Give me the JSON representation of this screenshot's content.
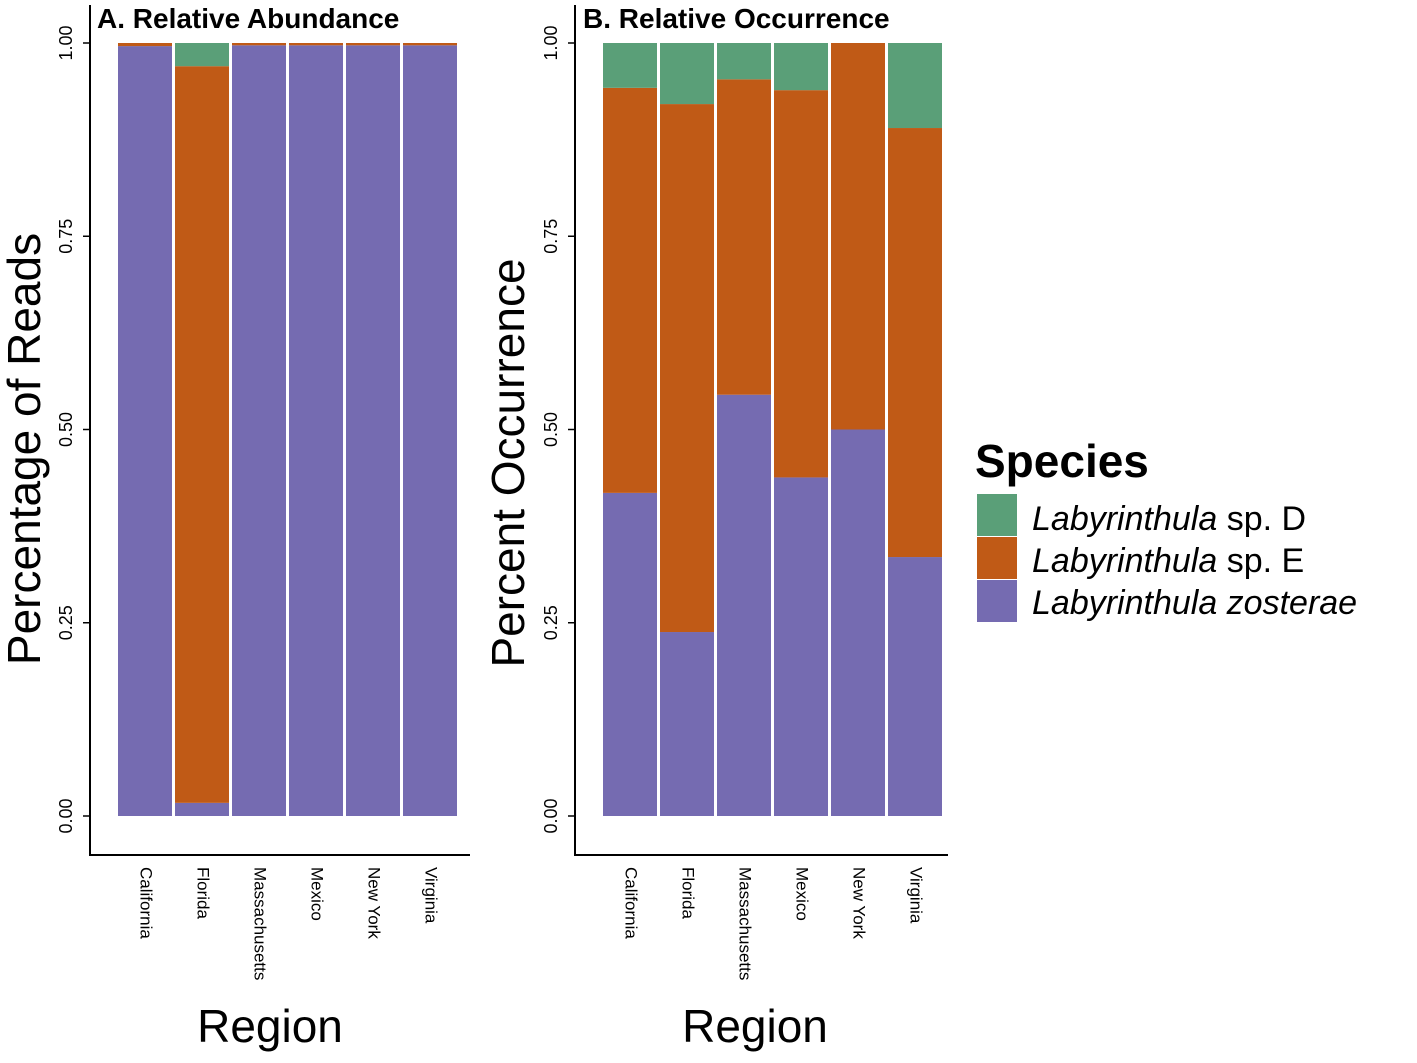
{
  "colors": {
    "sp_d": "#5a9f78",
    "sp_e": "#c05a16",
    "zosterae": "#756bb1",
    "axis": "#000000"
  },
  "legend": {
    "title": "Species",
    "items": [
      {
        "italic": "Labyrinthula",
        "rest": " sp. D",
        "color_key": "sp_d"
      },
      {
        "italic": "Labyrinthula",
        "rest": " sp. E",
        "color_key": "sp_e"
      },
      {
        "italic": "Labyrinthula zosterae",
        "rest": "",
        "color_key": "zosterae"
      }
    ]
  },
  "chart_data": [
    {
      "type": "bar",
      "stacked": true,
      "title": "A. Relative Abundance",
      "xlabel": "Region",
      "ylabel": "Percentage of Reads",
      "ylim": [
        0,
        1
      ],
      "yticks": [
        "0.00",
        "0.25",
        "0.50",
        "0.75",
        "1.00"
      ],
      "categories": [
        "California",
        "Florida",
        "Massachusetts",
        "Mexico",
        "New York",
        "Virginia"
      ],
      "series": [
        {
          "name": "Labyrinthula zosterae",
          "color_key": "zosterae",
          "values": [
            0.996,
            0.017,
            0.997,
            0.997,
            0.997,
            0.997
          ]
        },
        {
          "name": "Labyrinthula sp. E",
          "color_key": "sp_e",
          "values": [
            0.004,
            0.953,
            0.003,
            0.003,
            0.003,
            0.003
          ]
        },
        {
          "name": "Labyrinthula sp. D",
          "color_key": "sp_d",
          "values": [
            0.0,
            0.03,
            0.0,
            0.0,
            0.0,
            0.0
          ]
        }
      ]
    },
    {
      "type": "bar",
      "stacked": true,
      "title": "B. Relative Occurrence",
      "xlabel": "Region",
      "ylabel": "Percent Occurrence",
      "ylim": [
        0,
        1
      ],
      "yticks": [
        "0.00",
        "0.25",
        "0.50",
        "0.75",
        "1.00"
      ],
      "categories": [
        "California",
        "Florida",
        "Massachusetts",
        "Mexico",
        "New York",
        "Virginia"
      ],
      "series": [
        {
          "name": "Labyrinthula zosterae",
          "color_key": "zosterae",
          "values": [
            0.418,
            0.238,
            0.545,
            0.438,
            0.5,
            0.335
          ]
        },
        {
          "name": "Labyrinthula sp. E",
          "color_key": "sp_e",
          "values": [
            0.524,
            0.683,
            0.408,
            0.501,
            0.5,
            0.555
          ]
        },
        {
          "name": "Labyrinthula sp. D",
          "color_key": "sp_d",
          "values": [
            0.058,
            0.079,
            0.047,
            0.061,
            0.0,
            0.11
          ]
        }
      ]
    }
  ]
}
